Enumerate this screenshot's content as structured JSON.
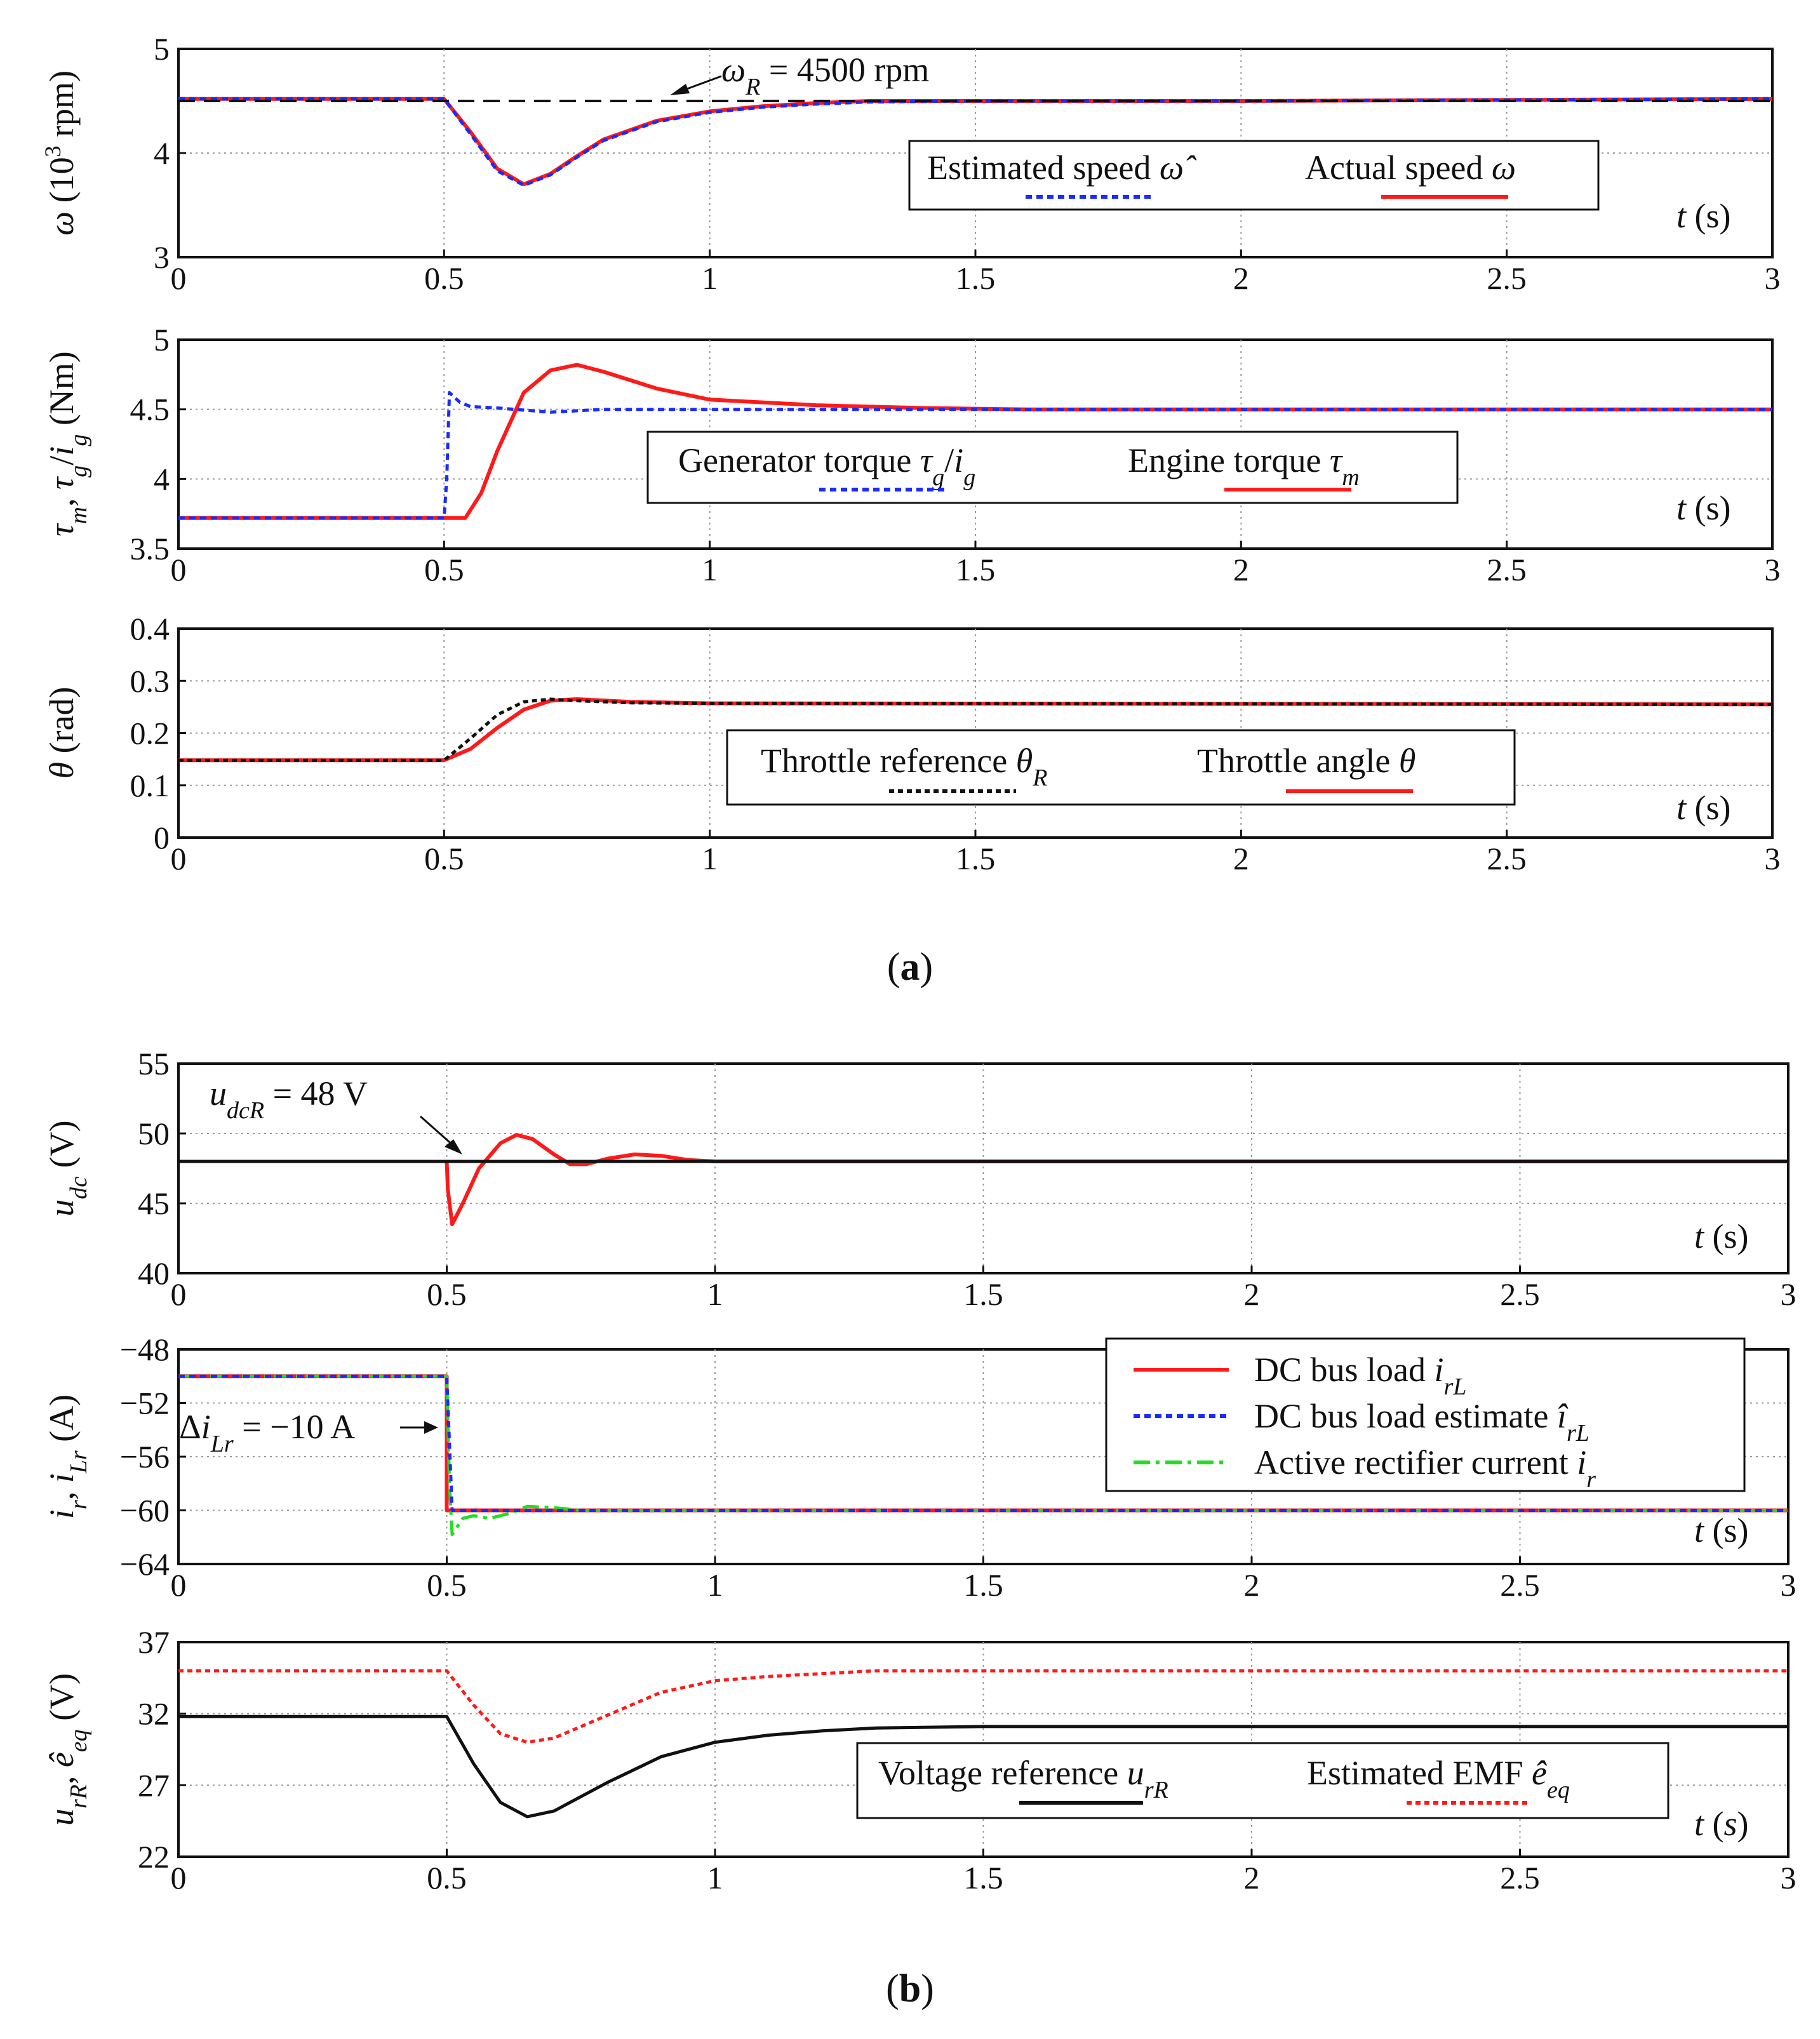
{
  "figure": {
    "caption_a_open": "(",
    "caption_a_letter": "a",
    "caption_a_close": ")",
    "caption_b_open": "(",
    "caption_b_letter": "b",
    "caption_b_close": ")",
    "colors": {
      "red": "#ff1a1a",
      "blue": "#1a2bff",
      "black": "#111111",
      "green": "#22dd22",
      "grid": "#999999"
    }
  },
  "chart_data": [
    {
      "id": "speed",
      "type": "line",
      "ylabel": "ω (10³ rpm)",
      "xlabel": "t (s)",
      "xlim": [
        0,
        3
      ],
      "ylim": [
        3,
        5
      ],
      "xticks": [
        "0",
        "0.5",
        "1",
        "1.5",
        "2",
        "2.5",
        "3"
      ],
      "yticks": [
        "3",
        "4",
        "5"
      ],
      "annotation": "ωR = 4500 rpm",
      "series": [
        {
          "name": "ωR",
          "style": "black-dash",
          "x": [
            0,
            3
          ],
          "y": [
            4.5,
            4.5
          ]
        },
        {
          "name": "Actual speed ω",
          "style": "red-solid",
          "x": [
            0,
            0.5,
            0.55,
            0.6,
            0.65,
            0.7,
            0.75,
            0.8,
            0.9,
            1.0,
            1.1,
            1.2,
            1.3,
            1.5,
            2.0,
            3.0
          ],
          "y": [
            4.52,
            4.52,
            4.2,
            3.85,
            3.7,
            3.8,
            3.97,
            4.13,
            4.31,
            4.4,
            4.45,
            4.48,
            4.5,
            4.5,
            4.5,
            4.52
          ]
        },
        {
          "name": "Estimated speed ω̂",
          "style": "blue-dot",
          "x": [
            0,
            0.5,
            0.55,
            0.6,
            0.65,
            0.7,
            0.75,
            0.8,
            0.9,
            1.0,
            1.1,
            1.2,
            1.3,
            1.5,
            2.0,
            3.0
          ],
          "y": [
            4.52,
            4.52,
            4.18,
            3.83,
            3.69,
            3.79,
            3.96,
            4.12,
            4.3,
            4.39,
            4.44,
            4.47,
            4.49,
            4.5,
            4.5,
            4.52
          ]
        }
      ],
      "legend": [
        {
          "label": "Estimated speed ω̂",
          "style": "blue-dot"
        },
        {
          "label": "Actual speed ω",
          "style": "red-solid"
        }
      ]
    },
    {
      "id": "torque",
      "type": "line",
      "ylabel": "τm, τg/ig (Nm)",
      "xlabel": "t (s)",
      "xlim": [
        0,
        3
      ],
      "ylim": [
        3.5,
        5
      ],
      "xticks": [
        "0",
        "0.5",
        "1",
        "1.5",
        "2",
        "2.5",
        "3"
      ],
      "yticks": [
        "3.5",
        "4",
        "4.5",
        "5"
      ],
      "series": [
        {
          "name": "Generator torque τg/ig",
          "style": "blue-dot",
          "x": [
            0,
            0.5,
            0.505,
            0.51,
            0.53,
            0.55,
            0.6,
            0.7,
            0.8,
            3.0
          ],
          "y": [
            3.72,
            3.72,
            4.0,
            4.62,
            4.55,
            4.52,
            4.51,
            4.48,
            4.5,
            4.5
          ]
        },
        {
          "name": "Engine torque τm",
          "style": "red-solid",
          "x": [
            0,
            0.54,
            0.57,
            0.6,
            0.65,
            0.7,
            0.75,
            0.8,
            0.9,
            1.0,
            1.2,
            1.4,
            1.6,
            3.0
          ],
          "y": [
            3.72,
            3.72,
            3.9,
            4.2,
            4.62,
            4.78,
            4.82,
            4.77,
            4.65,
            4.57,
            4.53,
            4.51,
            4.5,
            4.5
          ]
        }
      ],
      "legend": [
        {
          "label": "Generator torque τg/ig",
          "style": "blue-dot"
        },
        {
          "label": "Engine torque τm",
          "style": "red-solid"
        }
      ]
    },
    {
      "id": "throttle",
      "type": "line",
      "ylabel": "θ (rad)",
      "xlabel": "t (s)",
      "xlim": [
        0,
        3
      ],
      "ylim": [
        0,
        0.4
      ],
      "xticks": [
        "0",
        "0.5",
        "1",
        "1.5",
        "2",
        "2.5",
        "3"
      ],
      "yticks": [
        "0",
        "0.1",
        "0.2",
        "0.3",
        "0.4"
      ],
      "series": [
        {
          "name": "Throttle reference θR",
          "style": "black-dot",
          "x": [
            0,
            0.5,
            0.55,
            0.6,
            0.65,
            0.7,
            0.75,
            0.85,
            1.0,
            3.0
          ],
          "y": [
            0.148,
            0.148,
            0.19,
            0.235,
            0.26,
            0.265,
            0.262,
            0.258,
            0.257,
            0.255
          ]
        },
        {
          "name": "Throttle angle θ",
          "style": "red-solid",
          "x": [
            0,
            0.5,
            0.55,
            0.6,
            0.65,
            0.7,
            0.75,
            0.85,
            1.0,
            3.0
          ],
          "y": [
            0.148,
            0.148,
            0.17,
            0.21,
            0.245,
            0.262,
            0.265,
            0.26,
            0.257,
            0.255
          ]
        }
      ],
      "legend": [
        {
          "label": "Throttle reference θR",
          "style": "black-dot"
        },
        {
          "label": "Throttle angle θ",
          "style": "red-solid"
        }
      ]
    },
    {
      "id": "udc",
      "type": "line",
      "ylabel": "udc (V)",
      "xlabel": "t (s)",
      "xlim": [
        0,
        3
      ],
      "ylim": [
        40,
        55
      ],
      "xticks": [
        "0",
        "0.5",
        "1",
        "1.5",
        "2",
        "2.5",
        "3"
      ],
      "yticks": [
        "40",
        "45",
        "50",
        "55"
      ],
      "annotation": "udcR = 48 V",
      "series": [
        {
          "name": "udcR",
          "style": "black-solid",
          "x": [
            0,
            3
          ],
          "y": [
            48,
            48
          ]
        },
        {
          "name": "udc",
          "style": "red-solid",
          "x": [
            0.5,
            0.502,
            0.51,
            0.53,
            0.56,
            0.6,
            0.63,
            0.66,
            0.7,
            0.73,
            0.76,
            0.8,
            0.85,
            0.9,
            0.95,
            1.0,
            1.5,
            2.0,
            2.5,
            3.0
          ],
          "y": [
            48,
            46.0,
            43.5,
            45.0,
            47.5,
            49.3,
            49.9,
            49.6,
            48.5,
            47.8,
            47.8,
            48.2,
            48.5,
            48.4,
            48.1,
            48.0,
            48.0,
            48.0,
            48.0,
            48.0
          ]
        }
      ]
    },
    {
      "id": "currents",
      "type": "line",
      "ylabel": "ir, iLr (A)",
      "xlabel": "t (s)",
      "xlim": [
        0,
        3
      ],
      "ylim": [
        -64,
        -48
      ],
      "xticks": [
        "0",
        "0.5",
        "1",
        "1.5",
        "2",
        "2.5",
        "3"
      ],
      "yticks": [
        "−64",
        "−60",
        "−56",
        "−52",
        "−48"
      ],
      "annotation": "ΔiLr = −10 A",
      "series": [
        {
          "name": "DC bus load irL",
          "style": "red-solid",
          "x": [
            0,
            0.5,
            0.5,
            3.0
          ],
          "y": [
            -50,
            -50,
            -60,
            -60
          ]
        },
        {
          "name": "DC bus load estimate îrL",
          "style": "blue-dot",
          "x": [
            0,
            0.5,
            0.51,
            3.0
          ],
          "y": [
            -50,
            -50,
            -60,
            -60
          ]
        },
        {
          "name": "Active rectifier current ir",
          "style": "green-dashdot",
          "x": [
            0,
            0.5,
            0.505,
            0.51,
            0.52,
            0.53,
            0.55,
            0.58,
            0.62,
            0.65,
            0.7,
            0.75,
            3.0
          ],
          "y": [
            -50,
            -50,
            -58.0,
            -61.8,
            -61.2,
            -60.6,
            -60.4,
            -60.6,
            -60.2,
            -59.7,
            -59.8,
            -60.0,
            -60.0
          ]
        }
      ],
      "legend": [
        {
          "label": "DC bus load irL",
          "style": "red-solid"
        },
        {
          "label": "DC bus load estimate îrL",
          "style": "blue-dot"
        },
        {
          "label": "Active rectifier current ir",
          "style": "green-dashdot"
        }
      ]
    },
    {
      "id": "voltage",
      "type": "line",
      "ylabel": "urR, êeq (V)",
      "xlabel": "t (s)",
      "xlim": [
        0,
        3
      ],
      "ylim": [
        22,
        37
      ],
      "xticks": [
        "0",
        "0.5",
        "1",
        "1.5",
        "2",
        "2.5",
        "3"
      ],
      "yticks": [
        "22",
        "27",
        "32",
        "37"
      ],
      "series": [
        {
          "name": "Voltage reference urR",
          "style": "black-solid",
          "x": [
            0,
            0.5,
            0.55,
            0.6,
            0.65,
            0.7,
            0.8,
            0.9,
            1.0,
            1.1,
            1.2,
            1.3,
            1.5,
            2.0,
            3.0
          ],
          "y": [
            31.8,
            31.8,
            28.5,
            25.8,
            24.8,
            25.2,
            27.2,
            29.0,
            30.0,
            30.5,
            30.8,
            31.0,
            31.1,
            31.1,
            31.1
          ]
        },
        {
          "name": "Estimated EMF êeq",
          "style": "red-dot",
          "x": [
            0,
            0.5,
            0.55,
            0.6,
            0.65,
            0.7,
            0.8,
            0.9,
            1.0,
            1.1,
            1.2,
            1.3,
            1.5,
            2.0,
            3.0
          ],
          "y": [
            35.0,
            35.0,
            32.6,
            30.6,
            30.0,
            30.3,
            31.9,
            33.5,
            34.3,
            34.6,
            34.8,
            35.0,
            35.0,
            35.0,
            35.0
          ]
        }
      ],
      "legend": [
        {
          "label": "Voltage reference urR",
          "style": "black-solid"
        },
        {
          "label": "Estimated EMF êeq",
          "style": "red-dot"
        }
      ]
    }
  ]
}
